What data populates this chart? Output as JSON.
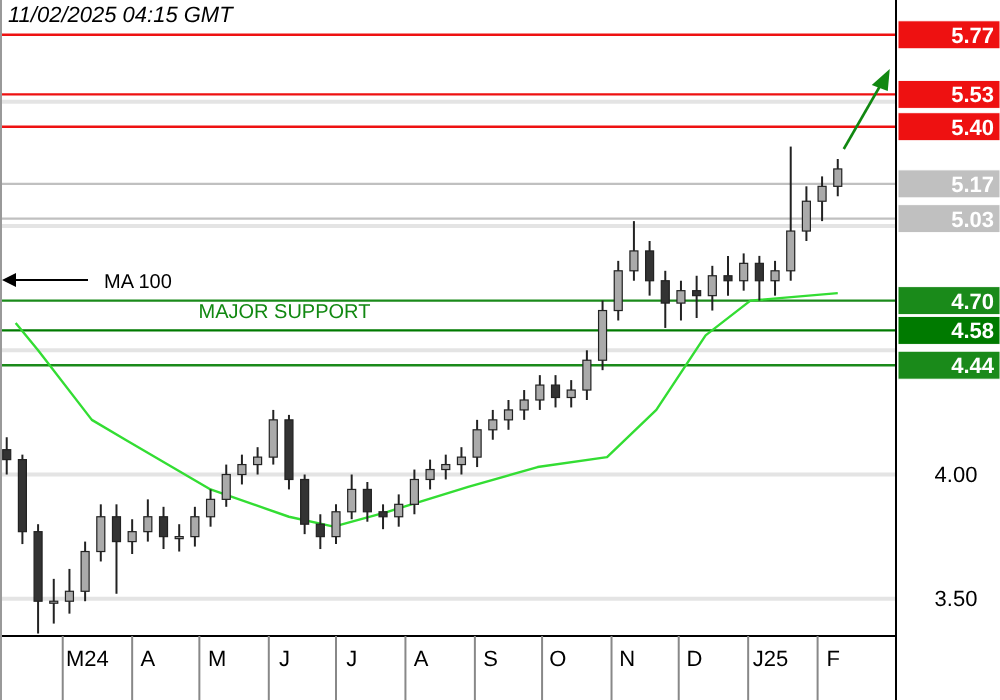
{
  "chart_data": {
    "type": "candlestick",
    "x": [
      "2024-02-05",
      "2024-02-12",
      "2024-02-19",
      "2024-02-26",
      "2024-03-04",
      "2024-03-11",
      "2024-03-18",
      "2024-03-25",
      "2024-04-01",
      "2024-04-08",
      "2024-04-15",
      "2024-04-22",
      "2024-04-29",
      "2024-05-06",
      "2024-05-13",
      "2024-05-20",
      "2024-05-27",
      "2024-06-03",
      "2024-06-10",
      "2024-06-17",
      "2024-06-24",
      "2024-07-01",
      "2024-07-08",
      "2024-07-15",
      "2024-07-22",
      "2024-07-29",
      "2024-08-05",
      "2024-08-12",
      "2024-08-19",
      "2024-08-26",
      "2024-09-02",
      "2024-09-09",
      "2024-09-16",
      "2024-09-23",
      "2024-09-30",
      "2024-10-07",
      "2024-10-14",
      "2024-10-21",
      "2024-10-28",
      "2024-11-04",
      "2024-11-11",
      "2024-11-18",
      "2024-11-25",
      "2024-12-02",
      "2024-12-09",
      "2024-12-16",
      "2024-12-23",
      "2024-12-30",
      "2025-01-06",
      "2025-01-13",
      "2025-01-20",
      "2025-01-27",
      "2025-02-03",
      "2025-02-10"
    ],
    "ohlc": [
      [
        4.1,
        4.15,
        4.0,
        4.06
      ],
      [
        4.06,
        4.08,
        3.72,
        3.77
      ],
      [
        3.77,
        3.8,
        3.36,
        3.49
      ],
      [
        3.49,
        3.58,
        3.4,
        3.49
      ],
      [
        3.49,
        3.62,
        3.44,
        3.53
      ],
      [
        3.53,
        3.73,
        3.49,
        3.69
      ],
      [
        3.69,
        3.88,
        3.65,
        3.83
      ],
      [
        3.83,
        3.88,
        3.52,
        3.73
      ],
      [
        3.73,
        3.82,
        3.68,
        3.77
      ],
      [
        3.77,
        3.9,
        3.73,
        3.83
      ],
      [
        3.83,
        3.87,
        3.7,
        3.75
      ],
      [
        3.75,
        3.8,
        3.69,
        3.75
      ],
      [
        3.75,
        3.87,
        3.71,
        3.83
      ],
      [
        3.83,
        3.94,
        3.79,
        3.9
      ],
      [
        3.9,
        4.04,
        3.87,
        4.0
      ],
      [
        4.0,
        4.08,
        3.96,
        4.04
      ],
      [
        4.04,
        4.11,
        4.0,
        4.07
      ],
      [
        4.07,
        4.26,
        4.04,
        4.22
      ],
      [
        4.22,
        4.24,
        3.94,
        3.98
      ],
      [
        3.98,
        4.0,
        3.76,
        3.8
      ],
      [
        3.8,
        3.84,
        3.7,
        3.75
      ],
      [
        3.75,
        3.88,
        3.72,
        3.85
      ],
      [
        3.85,
        4.0,
        3.82,
        3.94
      ],
      [
        3.94,
        3.97,
        3.81,
        3.85
      ],
      [
        3.85,
        3.88,
        3.78,
        3.83
      ],
      [
        3.83,
        3.92,
        3.79,
        3.88
      ],
      [
        3.88,
        4.02,
        3.84,
        3.98
      ],
      [
        3.98,
        4.06,
        3.94,
        4.02
      ],
      [
        4.02,
        4.08,
        3.98,
        4.04
      ],
      [
        4.04,
        4.11,
        4.0,
        4.07
      ],
      [
        4.07,
        4.22,
        4.03,
        4.18
      ],
      [
        4.18,
        4.26,
        4.14,
        4.22
      ],
      [
        4.22,
        4.3,
        4.18,
        4.26
      ],
      [
        4.26,
        4.34,
        4.22,
        4.3
      ],
      [
        4.3,
        4.4,
        4.26,
        4.36
      ],
      [
        4.36,
        4.4,
        4.27,
        4.31
      ],
      [
        4.31,
        4.38,
        4.27,
        4.34
      ],
      [
        4.34,
        4.5,
        4.3,
        4.46
      ],
      [
        4.46,
        4.7,
        4.42,
        4.66
      ],
      [
        4.66,
        4.86,
        4.62,
        4.82
      ],
      [
        4.82,
        5.02,
        4.78,
        4.9
      ],
      [
        4.9,
        4.94,
        4.72,
        4.78
      ],
      [
        4.78,
        4.82,
        4.59,
        4.69
      ],
      [
        4.69,
        4.78,
        4.62,
        4.74
      ],
      [
        4.74,
        4.8,
        4.63,
        4.72
      ],
      [
        4.72,
        4.84,
        4.66,
        4.8
      ],
      [
        4.8,
        4.88,
        4.72,
        4.78
      ],
      [
        4.78,
        4.89,
        4.74,
        4.85
      ],
      [
        4.85,
        4.88,
        4.7,
        4.78
      ],
      [
        4.78,
        4.86,
        4.72,
        4.82
      ],
      [
        4.82,
        5.32,
        4.78,
        4.98
      ],
      [
        4.98,
        5.16,
        4.94,
        5.1
      ],
      [
        5.1,
        5.2,
        5.02,
        5.16
      ],
      [
        5.16,
        5.27,
        5.12,
        5.23
      ]
    ],
    "series": [
      {
        "type": "line",
        "color": "#33dd33",
        "x": [
          "2024-02-09",
          "2024-02-19",
          "2024-03-14",
          "2024-03-29",
          "2024-05-06",
          "2024-06-10",
          "2024-06-30",
          "2024-07-24",
          "2024-08-29",
          "2024-09-29",
          "2024-10-30",
          "2024-11-21",
          "2024-12-13",
          "2025-01-02",
          "2025-02-10"
        ],
        "values": [
          4.61,
          4.5,
          4.22,
          4.14,
          3.94,
          3.83,
          3.79,
          3.85,
          3.95,
          4.03,
          4.07,
          4.26,
          4.56,
          4.7,
          4.73
        ]
      }
    ],
    "xlim": [
      "2024-02-02",
      "2025-03-08"
    ],
    "xticks": [
      {
        "value": "2024-03-12",
        "label": "M24"
      },
      {
        "value": "2024-04-08",
        "label": "A"
      },
      {
        "value": "2024-05-09",
        "label": "M"
      },
      {
        "value": "2024-06-08",
        "label": "J"
      },
      {
        "value": "2024-07-08",
        "label": "J"
      },
      {
        "value": "2024-08-08",
        "label": "A"
      },
      {
        "value": "2024-09-08",
        "label": "S"
      },
      {
        "value": "2024-10-08",
        "label": "O"
      },
      {
        "value": "2024-11-08",
        "label": "N"
      },
      {
        "value": "2024-12-08",
        "label": "D"
      },
      {
        "value": "2025-01-11",
        "label": "J25"
      },
      {
        "value": "2025-02-08",
        "label": "F"
      }
    ],
    "ylim": [
      3.35,
      5.91
    ],
    "yticks": [
      {
        "value": 3.5,
        "label": "3.50"
      },
      {
        "value": 4.0,
        "label": "4.00"
      },
      {
        "value": 4.5,
        "label": null
      },
      {
        "value": 5.0,
        "label": null
      },
      {
        "value": 5.5,
        "label": null
      }
    ],
    "grid": "y",
    "ref_lines": [
      {
        "axis": "y",
        "value": 5.77,
        "label": "5.77",
        "color": "#ee1111"
      },
      {
        "axis": "y",
        "value": 5.53,
        "label": "5.53",
        "color": "#ee1111"
      },
      {
        "axis": "y",
        "value": 5.4,
        "label": "5.40",
        "color": "#ee1111"
      },
      {
        "axis": "y",
        "value": 5.17,
        "label": "5.17",
        "color": "#c0c0c0"
      },
      {
        "axis": "y",
        "value": 5.03,
        "label": "5.03",
        "color": "#c0c0c0"
      },
      {
        "axis": "y",
        "value": 4.7,
        "label": "4.70",
        "color": "#1a8a1a"
      },
      {
        "axis": "y",
        "value": 4.58,
        "label": "4.58",
        "color": "#007a00"
      },
      {
        "axis": "y",
        "value": 4.44,
        "label": "4.44",
        "color": "#1a8a1a"
      }
    ],
    "annotations": [
      "11/02/2025 04:15 GMT",
      "MA 100",
      {
        "text": "MAJOR SUPPORT",
        "x": "2024-06-08",
        "y": 4.58
      }
    ]
  }
}
